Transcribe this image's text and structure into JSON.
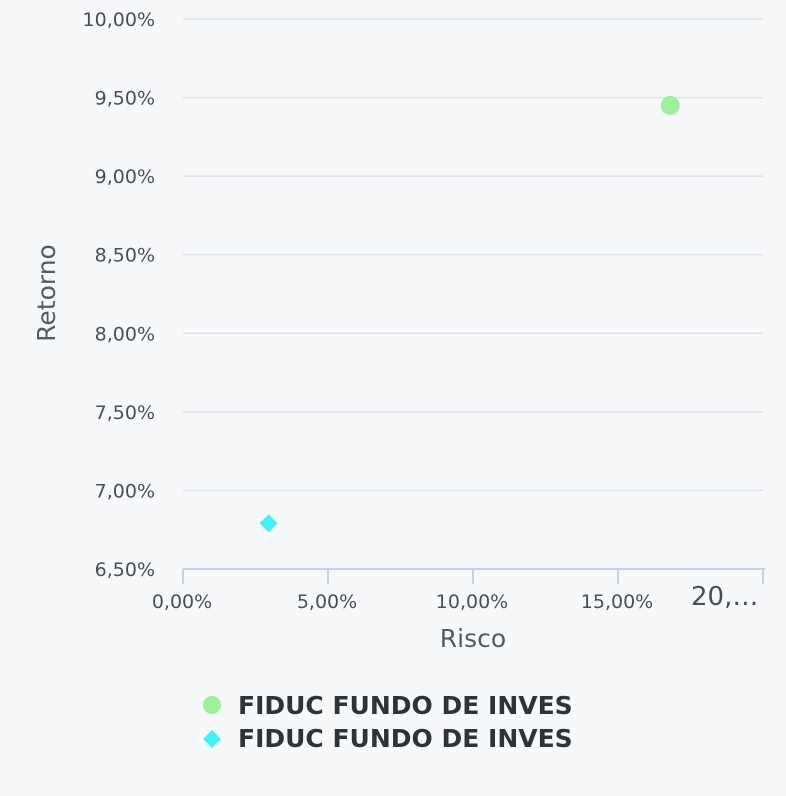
{
  "chart_data": {
    "type": "scatter",
    "title": "",
    "xlabel": "Risco",
    "ylabel": "Retorno",
    "xlim": [
      0,
      20
    ],
    "ylim": [
      6.5,
      10.0
    ],
    "x_ticks": [
      {
        "value": 0,
        "label": "0,00%"
      },
      {
        "value": 5,
        "label": "5,00%"
      },
      {
        "value": 10,
        "label": "10,00%"
      },
      {
        "value": 15,
        "label": "15,00%"
      },
      {
        "value": 20,
        "label": "20,…"
      }
    ],
    "y_ticks": [
      {
        "value": 6.5,
        "label": "6,50%"
      },
      {
        "value": 7.0,
        "label": "7,00%"
      },
      {
        "value": 7.5,
        "label": "7,50%"
      },
      {
        "value": 8.0,
        "label": "8,00%"
      },
      {
        "value": 8.5,
        "label": "8,50%"
      },
      {
        "value": 9.0,
        "label": "9,00%"
      },
      {
        "value": 9.5,
        "label": "9,50%"
      },
      {
        "value": 10.0,
        "label": "10,00%"
      }
    ],
    "grid": true,
    "legend_position": "bottom",
    "series": [
      {
        "name": "FIDUC FUNDO DE INVES",
        "marker": "circle",
        "color": "#9ef09a",
        "points": [
          {
            "x": 16.8,
            "y": 9.45
          }
        ]
      },
      {
        "name": "FIDUC FUNDO DE INVES",
        "marker": "diamond",
        "color": "#40f2f7",
        "points": [
          {
            "x": 2.95,
            "y": 6.79
          }
        ]
      }
    ]
  }
}
